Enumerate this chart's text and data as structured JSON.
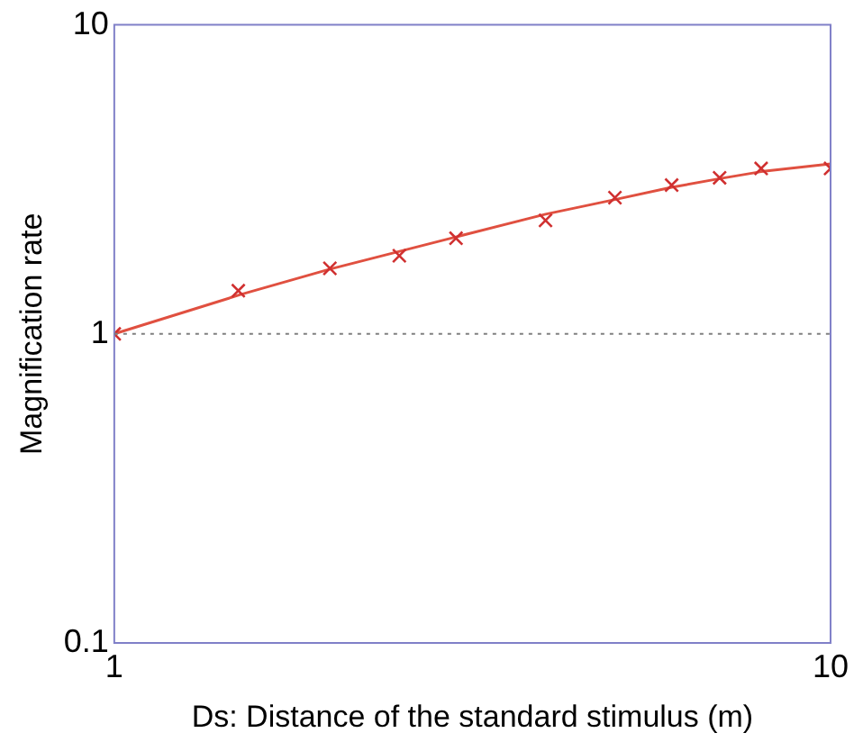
{
  "chart_data": {
    "type": "scatter",
    "xlabel": "Ds: Distance of the standard stimulus (m)",
    "ylabel": "Magnification rate",
    "log": "xy",
    "xlim": [
      1,
      10
    ],
    "xticks": [
      1,
      10
    ],
    "ylim": [
      0.1,
      10
    ],
    "yticks": [
      0.1,
      1,
      10
    ],
    "grid": false,
    "legend": false,
    "series": [
      {
        "marker": "cross",
        "color": "#d03030",
        "x": [
          1,
          1.49,
          2,
          2.5,
          3,
          4,
          5,
          6,
          7,
          8,
          10
        ],
        "values": [
          1,
          1.38,
          1.63,
          1.79,
          2.04,
          2.33,
          2.76,
          3.03,
          3.2,
          3.43,
          3.43
        ]
      },
      {
        "type": "line",
        "marker": "none",
        "line_style": "solid",
        "color": "#e05040",
        "x": [
          1,
          1.5,
          2,
          3,
          4,
          5,
          6,
          7,
          8,
          10
        ],
        "values": [
          1,
          1.34,
          1.62,
          2.06,
          2.44,
          2.72,
          2.98,
          3.18,
          3.35,
          3.55
        ]
      }
    ],
    "ref_lines": [
      {
        "axis": "y",
        "value": 1,
        "color": "#808080",
        "line_style": "dotted"
      }
    ]
  }
}
